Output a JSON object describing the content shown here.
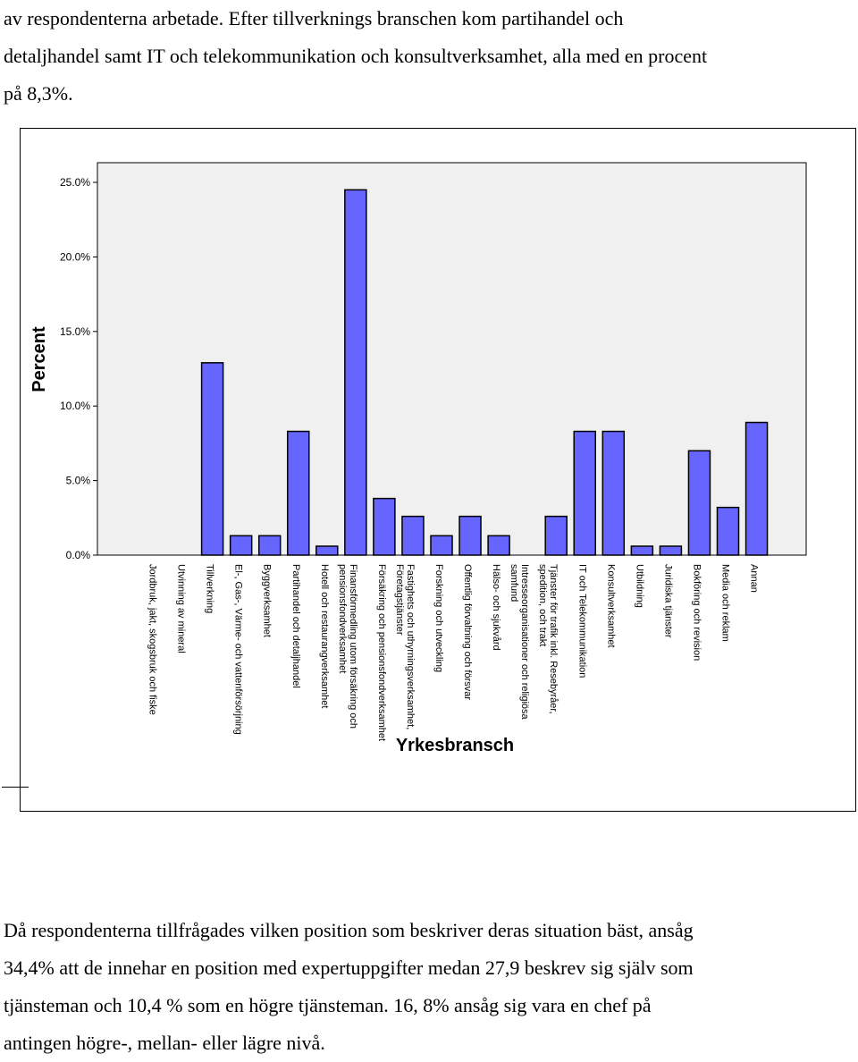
{
  "text_top": [
    "av respondenterna arbetade. Efter tillverknings branschen kom partihandel och",
    "detaljhandel samt IT och telekommunikation och konsultverksamhet, alla med en procent",
    "på 8,3%."
  ],
  "text_bottom": [
    "Då respondenterna tillfrågades vilken position som beskriver deras situation bäst, ansåg",
    "34,4% att de innehar en position med expertuppgifter medan 27,9 beskrev sig själv som",
    "tjänsteman och 10,4 % som en högre tjänsteman. 16, 8% ansåg sig vara en chef på",
    "antingen högre-, mellan- eller lägre nivå."
  ],
  "chart_data": {
    "type": "bar",
    "xlabel": "Yrkesbransch",
    "ylabel": "Percent",
    "ylim": [
      0,
      25
    ],
    "yticks": [
      "0.0%",
      "5.0%",
      "10.0%",
      "15.0%",
      "20.0%",
      "25.0%"
    ],
    "grid": false,
    "bar_color": "#6666ff",
    "plot_background": "#f0f0f0",
    "categories": [
      [
        "Jordbruk, jakt, skogsbruk och fiske"
      ],
      [
        "Utvinning av mineral"
      ],
      [
        "Tillverkning"
      ],
      [
        "El-, Gas-, Värme- och vattenförsörjning"
      ],
      [
        "Byggverksamhet"
      ],
      [
        "Partihandel och detaljhandel"
      ],
      [
        "Hotell och restaurangverksamhet"
      ],
      [
        "Finansförmedling utom försäkring och",
        "pensionsfondverksamhet"
      ],
      [
        "Försäkring och pensionsfondverksamhet"
      ],
      [
        "Fastighets och uthyrningsverksamhet,",
        "Företagstjänster"
      ],
      [
        "Forskning och utveckling"
      ],
      [
        "Offentlig förvaltning och försvar"
      ],
      [
        "Hälso- och sjukvård"
      ],
      [
        "Intresseorganisationer och religiösa",
        "samfund"
      ],
      [
        "Tjänster för trafik inkl. Resebyråer,",
        "spedition, och trakt"
      ],
      [
        "IT och Telekommunikation"
      ],
      [
        "Konsultverksamhet"
      ],
      [
        "Utbildning"
      ],
      [
        "Juridiska tjänster"
      ],
      [
        "Bokföring och revision"
      ],
      [
        "Media och reklam"
      ],
      [
        "Annan"
      ]
    ],
    "values": [
      0,
      0,
      12.9,
      1.3,
      1.3,
      8.3,
      0.6,
      24.5,
      3.8,
      2.6,
      1.3,
      2.6,
      1.3,
      0,
      2.6,
      8.3,
      8.3,
      0.6,
      0.6,
      7.0,
      3.2,
      8.9
    ]
  }
}
